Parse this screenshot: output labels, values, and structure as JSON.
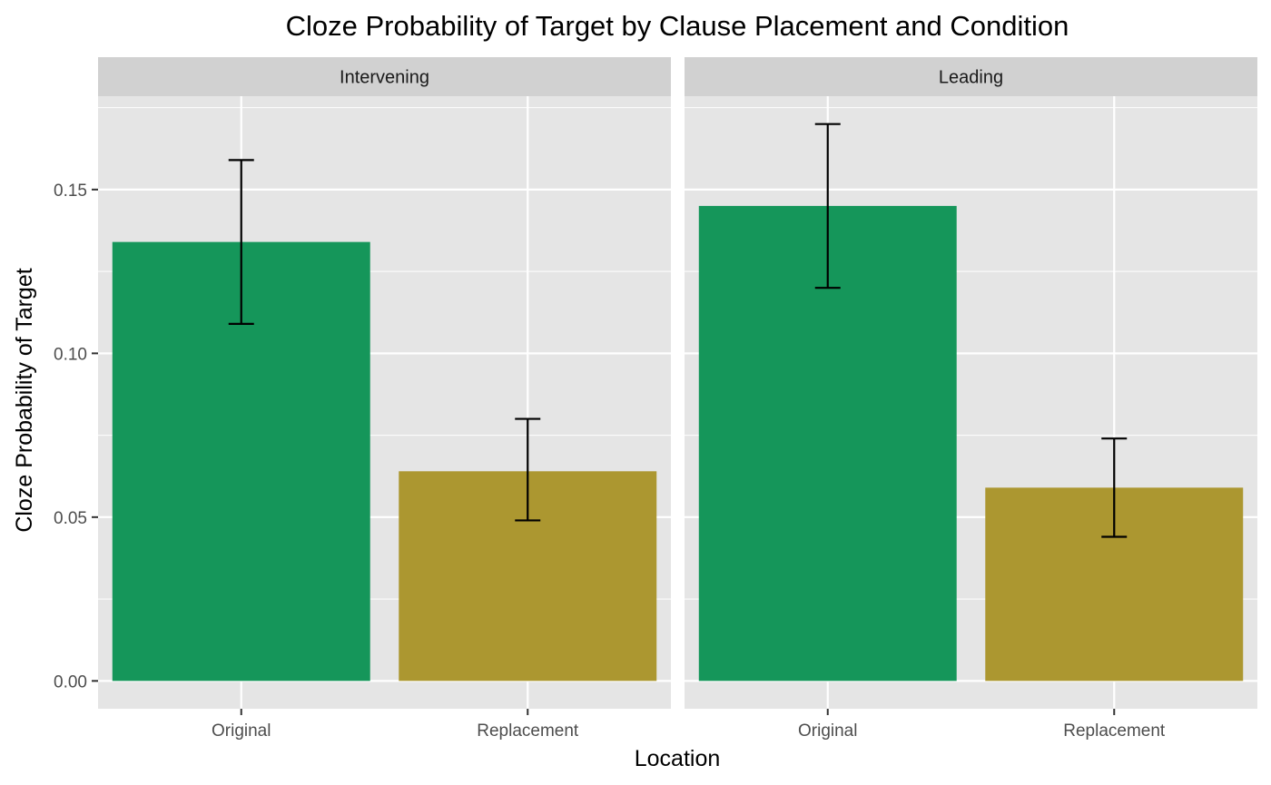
{
  "chart_data": {
    "type": "bar",
    "title": "Cloze Probability of Target by Clause Placement and Condition",
    "xlabel": "Location",
    "ylabel": "Cloze Probability of Target",
    "categories": [
      "Original",
      "Replacement"
    ],
    "ylim": [
      -0.0085,
      0.1785
    ],
    "y_ticks": [
      0.0,
      0.05,
      0.1,
      0.15
    ],
    "y_tick_labels": [
      "0.00",
      "0.05",
      "0.10",
      "0.15"
    ],
    "grid": true,
    "bar_colors": {
      "Original": "#15965A",
      "Replacement": "#AC9730"
    },
    "facets": [
      {
        "label": "Intervening",
        "values": [
          0.134,
          0.064
        ],
        "error_low": [
          0.109,
          0.049
        ],
        "error_high": [
          0.159,
          0.08
        ]
      },
      {
        "label": "Leading",
        "values": [
          0.145,
          0.059
        ],
        "error_low": [
          0.12,
          0.044
        ],
        "error_high": [
          0.17,
          0.074
        ]
      }
    ]
  },
  "colors": {
    "panel_bg": "#E5E5E5",
    "strip_bg": "#D1D1D1",
    "grid": "#FFFFFF",
    "error_bar": "#000000"
  }
}
